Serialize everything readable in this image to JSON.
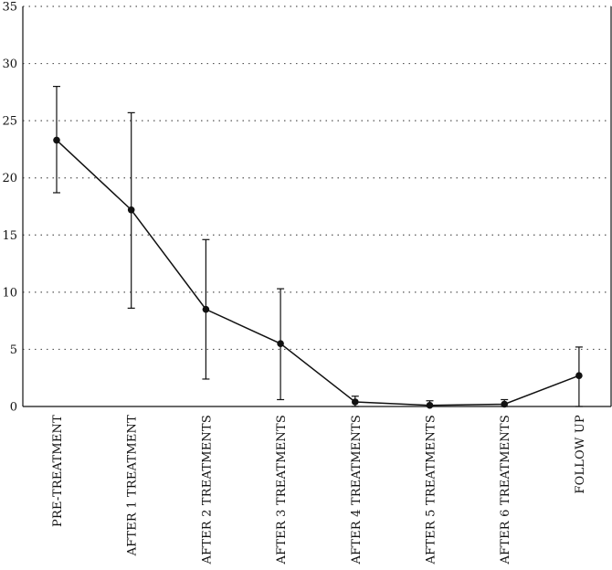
{
  "chart_data": {
    "type": "line",
    "title": "",
    "xlabel": "",
    "ylabel": "",
    "categories": [
      "PRE-TREATMENT",
      "AFTER 1 TREATMENT",
      "AFTER 2 TREATMENTS",
      "AFTER 3 TREATMENTS",
      "AFTER 4 TREATMENTS",
      "AFTER 5 TREATMENTS",
      "AFTER 6 TREATMENTS",
      "FOLLOW UP"
    ],
    "values": [
      23.3,
      17.2,
      8.5,
      5.5,
      0.4,
      0.1,
      0.2,
      2.7
    ],
    "error_low": [
      18.7,
      8.6,
      2.4,
      0.6,
      0.0,
      0.0,
      0.0,
      0.0
    ],
    "error_high": [
      28.0,
      25.7,
      14.6,
      10.3,
      0.9,
      0.5,
      0.6,
      5.2
    ],
    "ylim": [
      0,
      35
    ],
    "yticks": [
      "0",
      "5",
      "10",
      "15",
      "20",
      "25",
      "30",
      "35"
    ],
    "grid": true,
    "colors": {
      "line": "#111111",
      "grid": "#555555"
    }
  }
}
